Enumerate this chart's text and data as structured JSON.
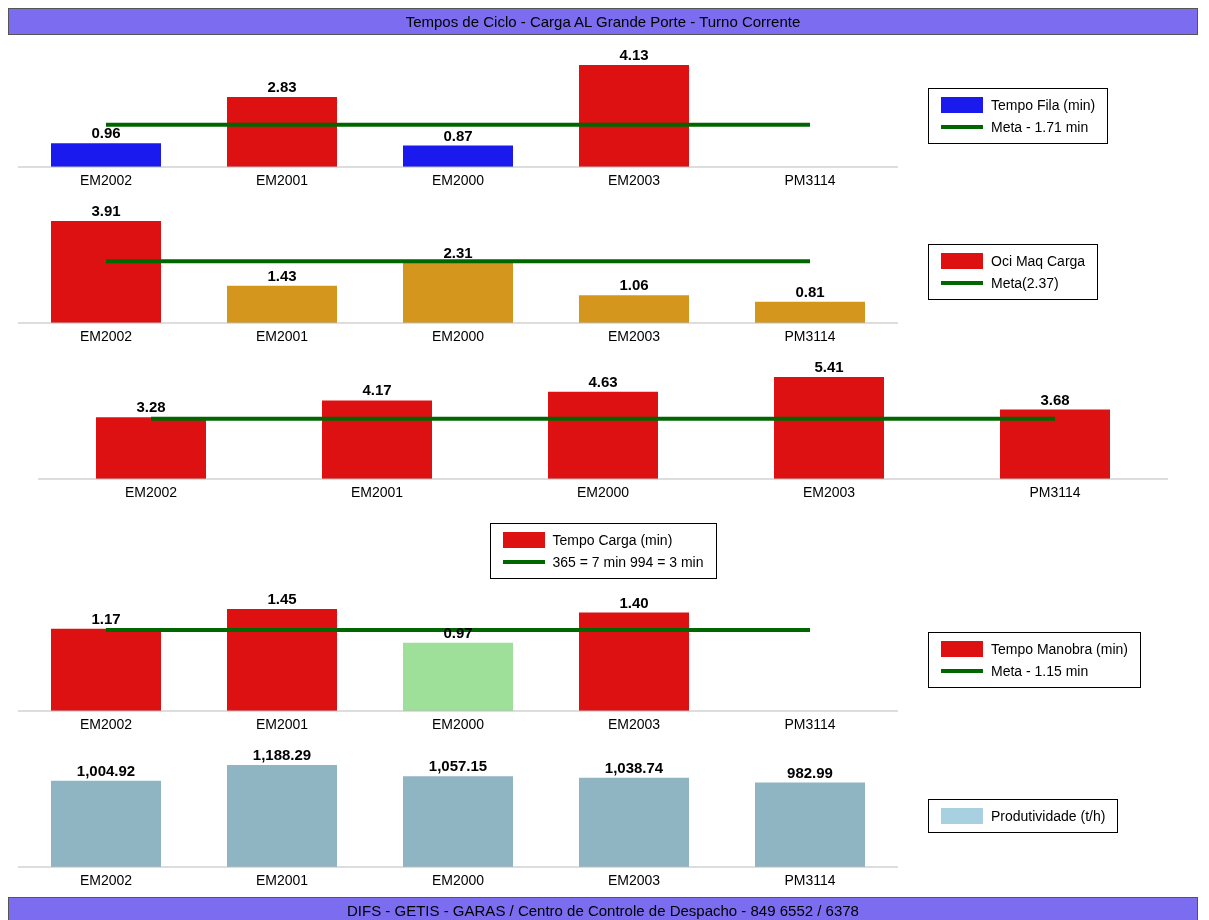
{
  "chart_data": [
    {
      "type": "bar",
      "title": "Tempos de Ciclo - Carga AL Grande Porte - Turno Corrente",
      "categories": [
        "EM2002",
        "EM2001",
        "EM2000",
        "EM2003",
        "PM3114"
      ],
      "legend": "right",
      "marker": "none",
      "grid": false,
      "series": [
        {
          "name": "Tempo Fila (min)",
          "color": "#1a1aee",
          "colors": [
            "#1a1aee",
            "#dd1111",
            "#1a1aee",
            "#dd1111",
            "#dd1111"
          ],
          "values": [
            0.96,
            2.83,
            0.87,
            4.13,
            null
          ],
          "value_labels": [
            "0.96",
            "2.83",
            "0.87",
            "4.13",
            null
          ]
        },
        {
          "type": "line",
          "name": "Meta - 1.71 min",
          "color": "#006600",
          "values": [
            1.71,
            1.71,
            1.71,
            1.71,
            1.71
          ]
        }
      ]
    },
    {
      "type": "bar",
      "categories": [
        "EM2002",
        "EM2001",
        "EM2000",
        "EM2003",
        "PM3114"
      ],
      "legend": "right",
      "marker": "none",
      "grid": false,
      "series": [
        {
          "name": "Oci Maq Carga",
          "color": "#dd1111",
          "colors": [
            "#dd1111",
            "#d4961c",
            "#d4961c",
            "#d4961c",
            "#d4961c"
          ],
          "values": [
            3.91,
            1.43,
            2.31,
            1.06,
            0.81
          ],
          "value_labels": [
            "3.91",
            "1.43",
            "2.31",
            "1.06",
            "0.81"
          ]
        },
        {
          "type": "line",
          "name": "Meta(2.37)",
          "color": "#006600",
          "values": [
            2.37,
            2.37,
            2.37,
            2.37,
            2.37
          ]
        }
      ]
    },
    {
      "type": "bar",
      "categories": [
        "EM2002",
        "EM2001",
        "EM2000",
        "EM2003",
        "PM3114"
      ],
      "legend": "bottom",
      "marker": "none",
      "grid": false,
      "series": [
        {
          "name": "Tempo Carga (min)",
          "color": "#dd1111",
          "colors": [
            "#dd1111",
            "#dd1111",
            "#dd1111",
            "#dd1111",
            "#dd1111"
          ],
          "values": [
            3.28,
            4.17,
            4.63,
            5.41,
            3.68
          ],
          "value_labels": [
            "3.28",
            "4.17",
            "4.63",
            "5.41",
            "3.68"
          ]
        },
        {
          "type": "line",
          "name": "365 = 7 min 994 = 3 min",
          "color": "#006600",
          "values": [
            3.2,
            3.2,
            3.2,
            3.2,
            3.2
          ]
        }
      ]
    },
    {
      "type": "bar",
      "categories": [
        "EM2002",
        "EM2001",
        "EM2000",
        "EM2003",
        "PM3114"
      ],
      "legend": "right",
      "marker": "none",
      "grid": false,
      "series": [
        {
          "name": "Tempo Manobra (min)",
          "color": "#dd1111",
          "colors": [
            "#dd1111",
            "#dd1111",
            "#9ee09a",
            "#dd1111",
            "#dd1111"
          ],
          "values": [
            1.17,
            1.45,
            0.97,
            1.4,
            null
          ],
          "value_labels": [
            "1.17",
            "1.45",
            "0.97",
            "1.40",
            null
          ]
        },
        {
          "type": "line",
          "name": "Meta - 1.15 min",
          "color": "#006600",
          "values": [
            1.15,
            1.15,
            1.15,
            1.15,
            1.15
          ]
        }
      ]
    },
    {
      "type": "bar",
      "categories": [
        "EM2002",
        "EM2001",
        "EM2000",
        "EM2003",
        "PM3114"
      ],
      "legend": "right",
      "grid": false,
      "annotations": [
        "DIFS - GETIS - GARAS / Centro de Controle de Despacho - 849 6552 / 6378"
      ],
      "series": [
        {
          "name": "Produtividade (t/h)",
          "color": "#a8d0e0",
          "colors": [
            "#8fb4c2",
            "#8fb4c2",
            "#8fb4c2",
            "#8fb4c2",
            "#8fb4c2"
          ],
          "values": [
            1004.92,
            1188.29,
            1057.15,
            1038.74,
            982.99
          ],
          "value_labels": [
            "1,004.92",
            "1,188.29",
            "1,057.15",
            "1,038.74",
            "982.99"
          ]
        }
      ]
    }
  ]
}
